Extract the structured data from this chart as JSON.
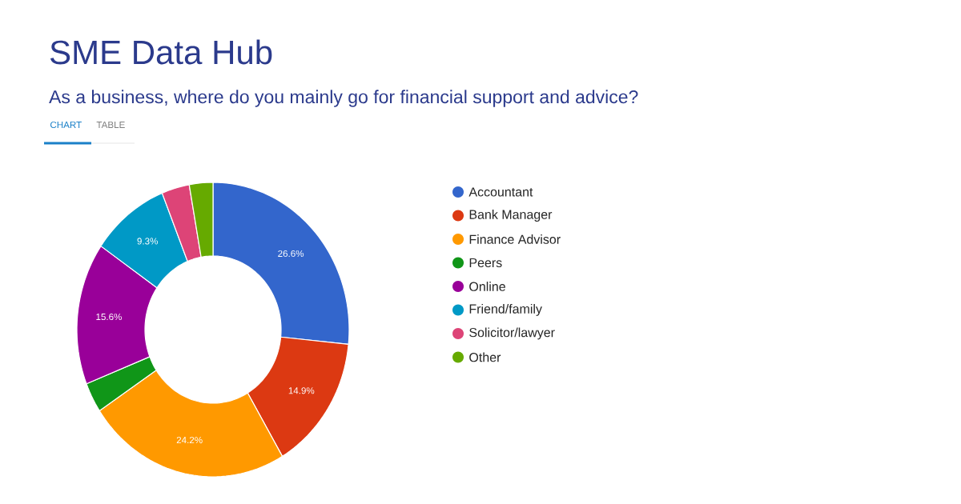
{
  "chart_data": {
    "type": "donut",
    "title": "SME Data Hub",
    "subtitle": "As a business, where do you mainly go for financial support and advice?",
    "annotations": [
      "CHART",
      "TABLE"
    ],
    "categories": [
      "Accountant",
      "Bank Manager",
      "Finance Advisor",
      "Peers",
      "Online",
      "Friend/family",
      "Solicitor/lawyer",
      "Other"
    ],
    "values": [
      26.6,
      14.9,
      24.2,
      3.3,
      15.6,
      9.3,
      3.3,
      2.8
    ],
    "colors": [
      "#3366cc",
      "#dc3912",
      "#ff9900",
      "#109618",
      "#990099",
      "#0099c6",
      "#dd4477",
      "#66aa00"
    ],
    "value_labels": [
      "26.6%",
      "14.9%",
      "24.2%",
      null,
      "15.6%",
      "9.3%",
      null,
      null
    ],
    "legend": "right"
  }
}
